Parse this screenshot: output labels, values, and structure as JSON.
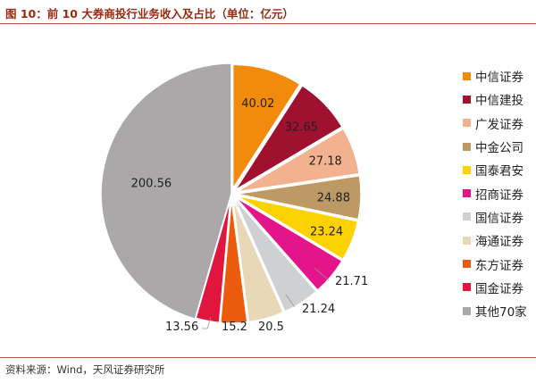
{
  "header": {
    "title": "图 10：前 10 大券商投行业务收入及占比（单位：亿元）"
  },
  "footer": {
    "source": "资料来源：Wind，天风证券研究所"
  },
  "chart_data": {
    "type": "pie",
    "unit": "亿元",
    "style": "exploded",
    "legend_position": "right",
    "slices": [
      {
        "label": "中信证券",
        "value": 40.02,
        "color": "#f28a0c"
      },
      {
        "label": "中信建投",
        "value": 32.65,
        "color": "#a0102f"
      },
      {
        "label": "广发证券",
        "value": 27.18,
        "color": "#f3b28f"
      },
      {
        "label": "中金公司",
        "value": 24.88,
        "color": "#bd9a63"
      },
      {
        "label": "国泰君安",
        "value": 23.24,
        "color": "#fcd200"
      },
      {
        "label": "招商证券",
        "value": 21.71,
        "color": "#e4148a"
      },
      {
        "label": "国信证券",
        "value": 21.24,
        "color": "#cfd0d2"
      },
      {
        "label": "海通证券",
        "value": 20.5,
        "color": "#e8d8b8"
      },
      {
        "label": "东方证券",
        "value": 15.2,
        "color": "#ea5b0c"
      },
      {
        "label": "国金证券",
        "value": 13.56,
        "color": "#e0163e"
      },
      {
        "label": "其他70家",
        "value": 200.56,
        "color": "#aaa8a8"
      }
    ]
  }
}
